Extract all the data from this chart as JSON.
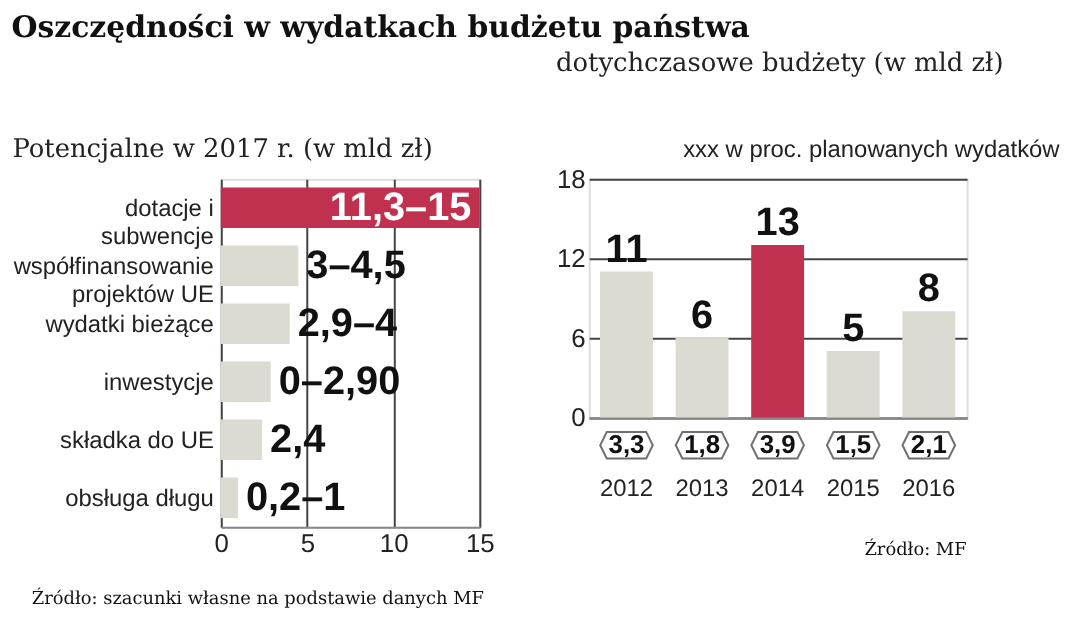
{
  "chart_data": [
    {
      "type": "bar",
      "orientation": "horizontal",
      "title": "Oszczędności w wydatkach budżetu państwa",
      "subtitle": "Potencjalne w 2017 r. (w mld zł)",
      "categories": [
        "dotacje i subwencje",
        "współfinansowanie projektów UE",
        "wydatki bieżące",
        "inwestycje",
        "składka do UE",
        "obsługa długu"
      ],
      "values": [
        15,
        4.5,
        4,
        2.9,
        2.4,
        1
      ],
      "colors": [
        "#c0304f",
        "#dcdbd2",
        "#dcdbd2",
        "#dcdbd2",
        "#dcdbd2",
        "#dcdbd2"
      ],
      "value_labels": [
        "11,3–15",
        "3–4,5",
        "2,9–4",
        "0–2,90",
        "2,4",
        "0,2–1"
      ],
      "xlim": [
        0,
        15
      ],
      "xticks": [
        0,
        5,
        10,
        15
      ],
      "grid": "x",
      "annotations": [
        "Źródło: szacunki własne na podstawie danych MF"
      ]
    },
    {
      "type": "bar",
      "title": "dotychczasowe budżety (w mld zł)",
      "categories": [
        "2012",
        "2013",
        "2014",
        "2015",
        "2016"
      ],
      "values": [
        11,
        6,
        13,
        5,
        8
      ],
      "colors": [
        "#dcdbd2",
        "#dcdbd2",
        "#c0304f",
        "#dcdbd2",
        "#dcdbd2"
      ],
      "data_labels": true,
      "ylim": [
        0,
        18
      ],
      "yticks": [
        0,
        6,
        12,
        18
      ],
      "grid": "y",
      "annotations": [
        "xxx w proc. planowanych wydatków",
        "3,3",
        "1,8",
        "3,9",
        "1,5",
        "2,1",
        "Źródło: MF"
      ]
    }
  ]
}
